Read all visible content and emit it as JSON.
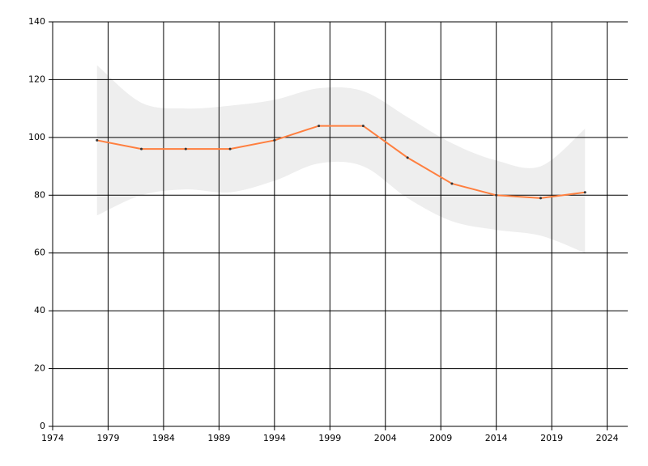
{
  "chart_data": {
    "type": "line",
    "x": [
      1978,
      1982,
      1986,
      1990,
      1994,
      1998,
      2002,
      2006,
      2010,
      2014,
      2018,
      2022
    ],
    "series": [
      {
        "color": "#ff7f3f",
        "values": [
          99,
          96,
          96,
          96,
          99,
          104,
          104,
          93,
          84,
          80,
          79,
          81
        ]
      }
    ],
    "band": {
      "color": "#eeeeee",
      "upper": [
        125,
        112,
        110,
        111,
        113,
        117,
        116,
        107,
        98,
        92,
        90,
        103
      ],
      "lower": [
        73,
        80,
        82,
        81,
        85,
        91,
        90,
        79,
        71,
        68,
        66,
        60
      ]
    },
    "xlim": [
      1974,
      2026
    ],
    "xticks": [
      1974,
      1979,
      1984,
      1989,
      1994,
      1999,
      2004,
      2009,
      2014,
      2019,
      2024
    ],
    "ylim": [
      0,
      140
    ],
    "yticks": [
      0,
      20,
      40,
      60,
      80,
      100,
      120,
      140
    ],
    "grid": true,
    "grid_color": "#000000"
  }
}
